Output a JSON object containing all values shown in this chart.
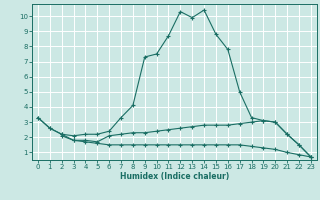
{
  "xlabel": "Humidex (Indice chaleur)",
  "background_color": "#cce8e4",
  "grid_color": "#ffffff",
  "line_color": "#1a6e64",
  "x_ticks": [
    0,
    1,
    2,
    3,
    4,
    5,
    6,
    7,
    8,
    9,
    10,
    11,
    12,
    13,
    14,
    15,
    16,
    17,
    18,
    19,
    20,
    21,
    22,
    23
  ],
  "y_ticks": [
    1,
    2,
    3,
    4,
    5,
    6,
    7,
    8,
    9,
    10
  ],
  "xlim": [
    -0.5,
    23.5
  ],
  "ylim": [
    0.5,
    10.8
  ],
  "curve1_x": [
    0,
    1,
    2,
    3,
    4,
    5,
    6,
    7,
    8,
    9,
    10,
    11,
    12,
    13,
    14,
    15,
    16,
    17,
    18,
    19,
    20,
    21,
    22,
    23
  ],
  "curve1_y": [
    3.3,
    2.6,
    2.2,
    2.1,
    2.2,
    2.2,
    2.4,
    3.3,
    4.1,
    7.3,
    7.5,
    8.7,
    10.3,
    9.9,
    10.4,
    8.8,
    7.8,
    5.0,
    3.3,
    3.1,
    3.0,
    2.2,
    1.5,
    0.7
  ],
  "curve2_x": [
    0,
    1,
    2,
    3,
    4,
    5,
    6,
    7,
    8,
    9,
    10,
    11,
    12,
    13,
    14,
    15,
    16,
    17,
    18,
    19,
    20,
    21,
    22,
    23
  ],
  "curve2_y": [
    3.3,
    2.6,
    2.2,
    1.8,
    1.8,
    1.7,
    2.1,
    2.2,
    2.3,
    2.3,
    2.4,
    2.5,
    2.6,
    2.7,
    2.8,
    2.8,
    2.8,
    2.9,
    3.0,
    3.1,
    3.0,
    2.2,
    1.5,
    0.7
  ],
  "curve3_x": [
    2,
    3,
    4,
    5,
    6,
    7,
    8,
    9,
    10,
    11,
    12,
    13,
    14,
    15,
    16,
    17,
    18,
    19,
    20,
    21,
    22,
    23
  ],
  "curve3_y": [
    2.1,
    1.8,
    1.7,
    1.6,
    1.5,
    1.5,
    1.5,
    1.5,
    1.5,
    1.5,
    1.5,
    1.5,
    1.5,
    1.5,
    1.5,
    1.5,
    1.4,
    1.3,
    1.2,
    1.0,
    0.85,
    0.7
  ]
}
